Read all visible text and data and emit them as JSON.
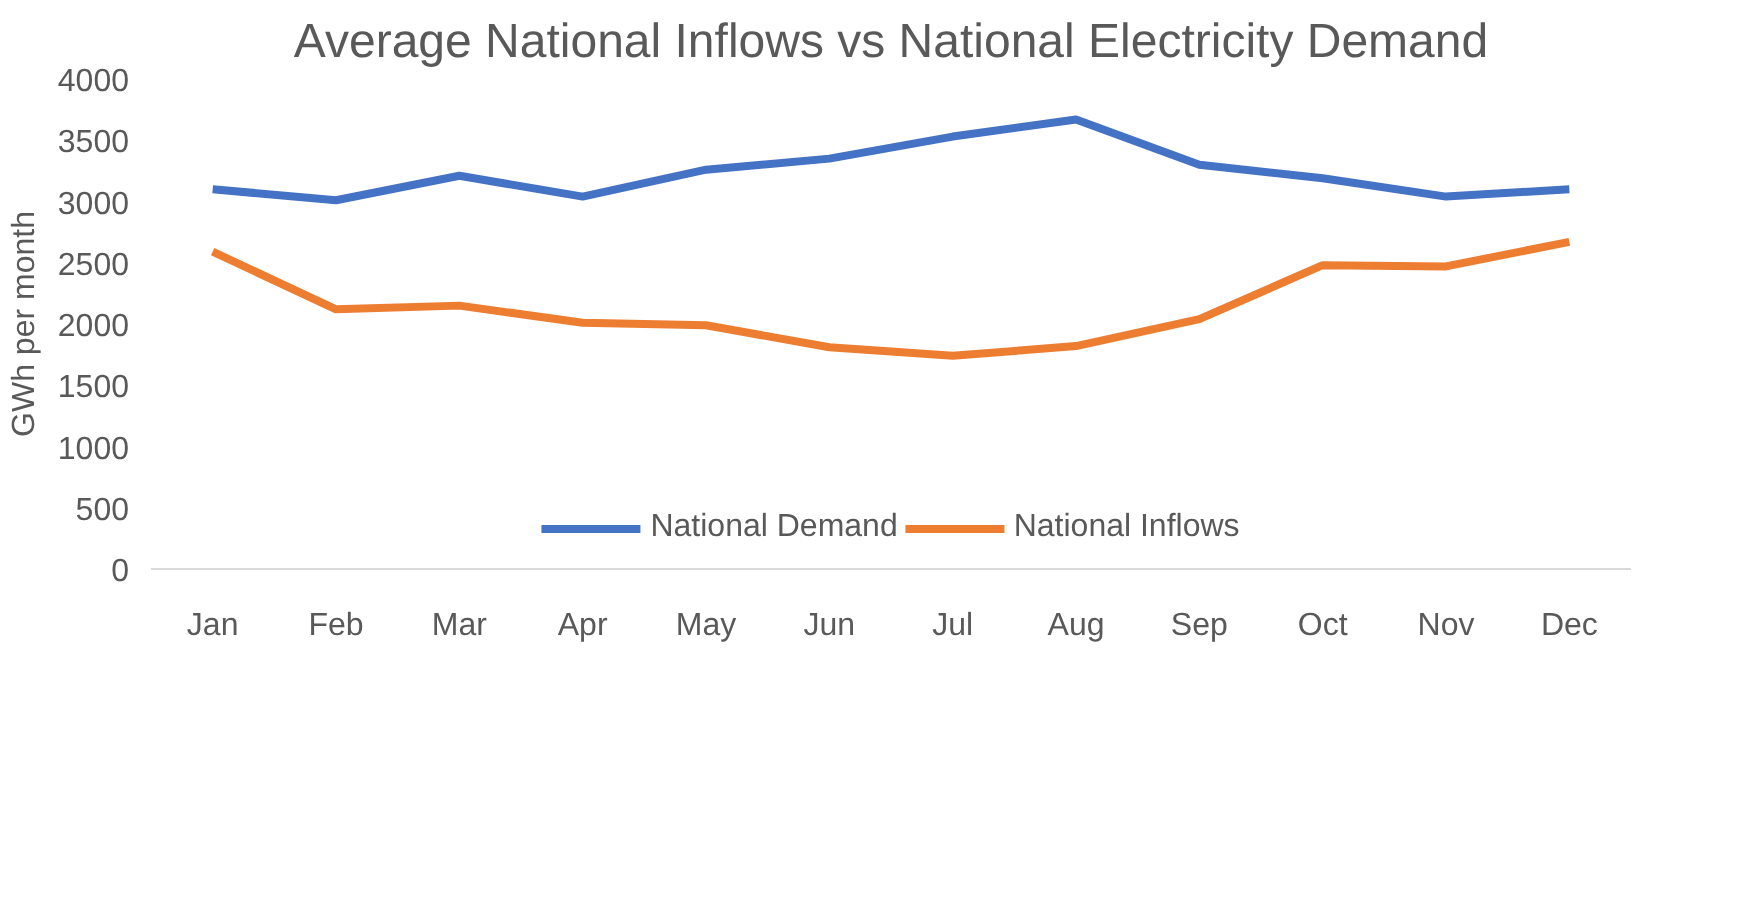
{
  "chart_data": {
    "type": "line",
    "title": "Average National Inflows vs National Electricity Demand",
    "ylabel": "GWh per month",
    "categories": [
      "Jan",
      "Feb",
      "Mar",
      "Apr",
      "May",
      "Jun",
      "Jul",
      "Aug",
      "Sep",
      "Oct",
      "Nov",
      "Dec"
    ],
    "series": [
      {
        "name": "National Demand",
        "color": "#4472c4",
        "values": [
          3100,
          3010,
          3210,
          3040,
          3260,
          3350,
          3530,
          3670,
          3300,
          3190,
          3040,
          3100
        ]
      },
      {
        "name": "National Inflows",
        "color": "#ed7d31",
        "values": [
          2590,
          2120,
          2150,
          2010,
          1990,
          1810,
          1740,
          1820,
          2040,
          2480,
          2470,
          2670
        ]
      }
    ],
    "ylim": [
      0,
      4000
    ],
    "yticks": [
      0,
      500,
      1000,
      1500,
      2000,
      2500,
      3000,
      3500,
      4000
    ],
    "grid": false,
    "legend": "bottom",
    "marker": "none",
    "line_style": "solid"
  }
}
